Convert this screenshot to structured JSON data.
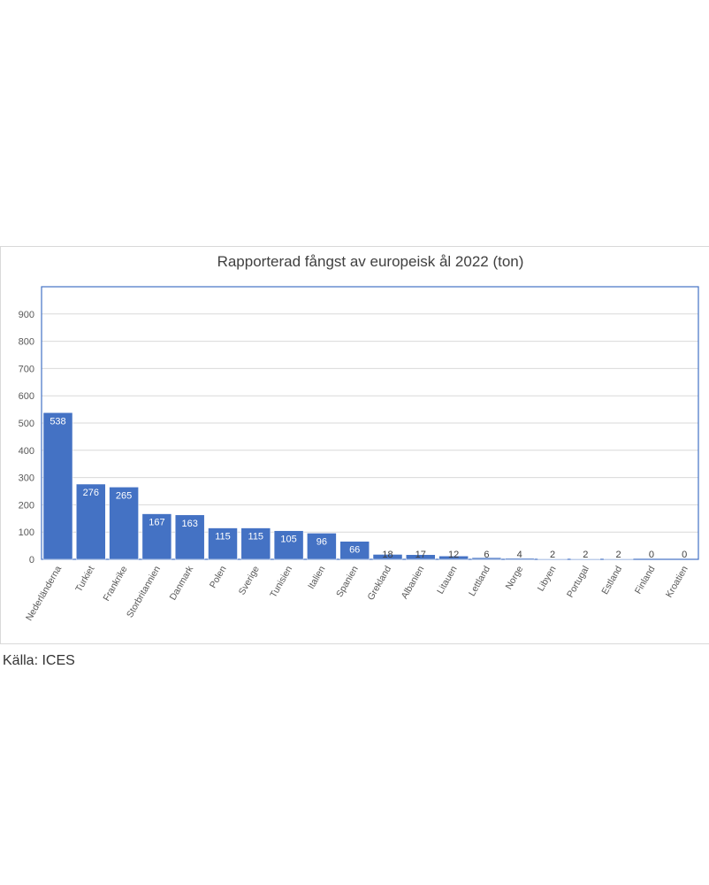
{
  "chart_data": {
    "type": "bar",
    "title": "Rapporterad fångst av europeisk ål 2022 (ton)",
    "xlabel": "",
    "ylabel": "",
    "ylim": [
      0,
      1000
    ],
    "yticks": [
      0,
      100,
      200,
      300,
      400,
      500,
      600,
      700,
      800,
      900
    ],
    "grid": true,
    "legend": "none",
    "bar_color": "#4472c4",
    "categories": [
      "Nederländerna",
      "Turkiet",
      "Frankrike",
      "Storbritannien",
      "Danmark",
      "Polen",
      "Sverige",
      "Tunisien",
      "Italien",
      "Spanien",
      "Grekland",
      "Albanien",
      "Litauen",
      "Lettland",
      "Norge",
      "Libyen",
      "Portugal",
      "Estland",
      "Finland",
      "Kroatien"
    ],
    "values": [
      538,
      276,
      265,
      167,
      163,
      115,
      115,
      105,
      96,
      66,
      18,
      17,
      12,
      6,
      4,
      2,
      2,
      2,
      0,
      0
    ]
  },
  "source": "Källa: ICES"
}
